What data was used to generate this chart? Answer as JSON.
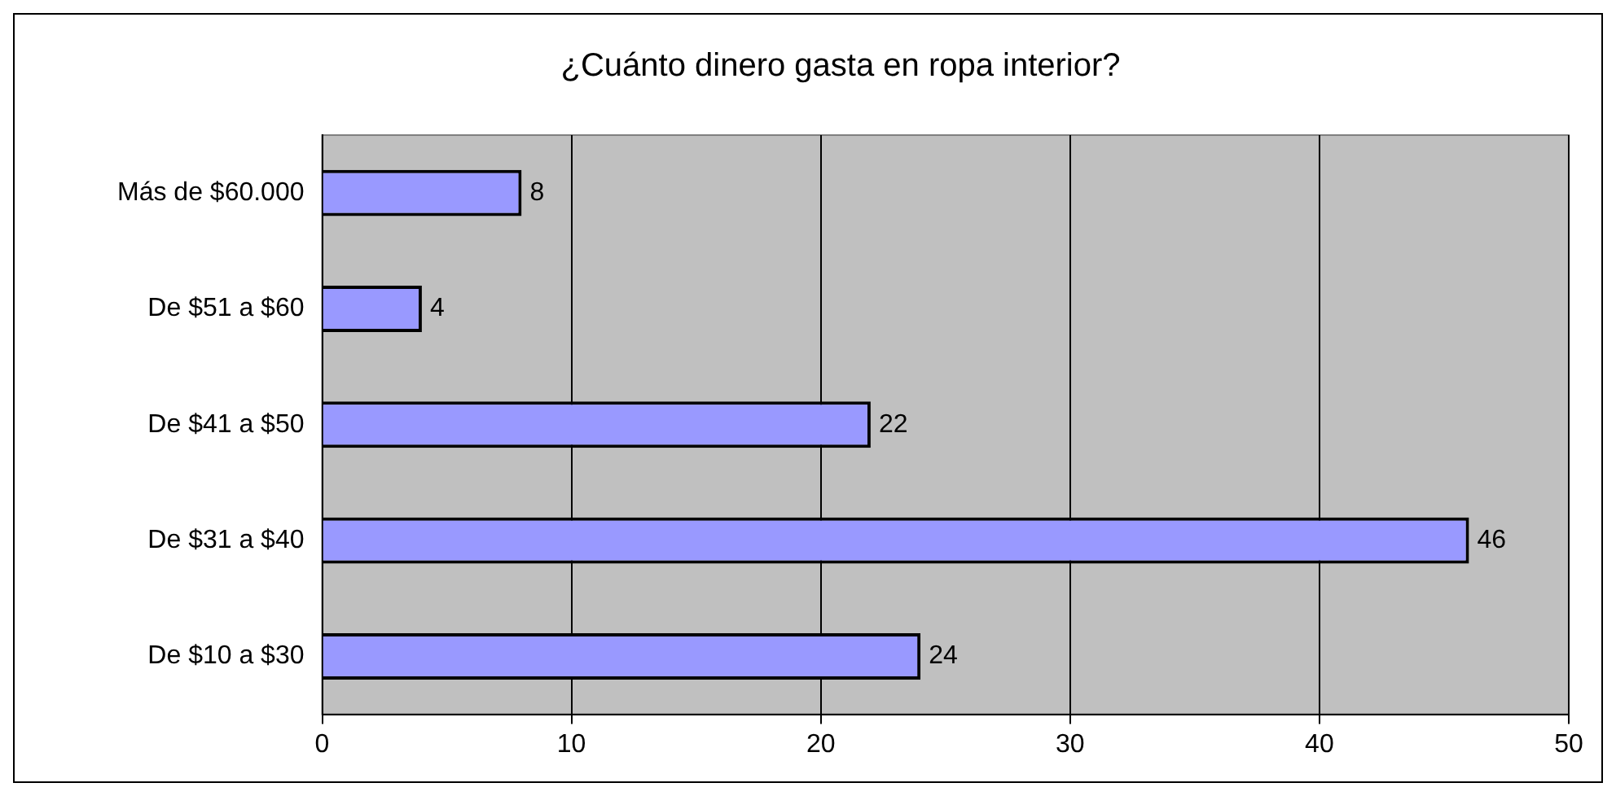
{
  "chart_data": {
    "type": "bar",
    "orientation": "horizontal",
    "title": "¿Cuánto dinero gasta en ropa interior?",
    "categories": [
      "Más de $60.000",
      "De $51 a $60",
      "De $41 a $50",
      "De $31 a $40",
      "De $10 a $30"
    ],
    "values": [
      8,
      4,
      22,
      46,
      24
    ],
    "color": "#9999ff",
    "xlim": [
      0,
      50
    ],
    "xticks": [
      0,
      10,
      20,
      30,
      40,
      50
    ],
    "grid": "x",
    "data_labels": true,
    "legend": false
  }
}
